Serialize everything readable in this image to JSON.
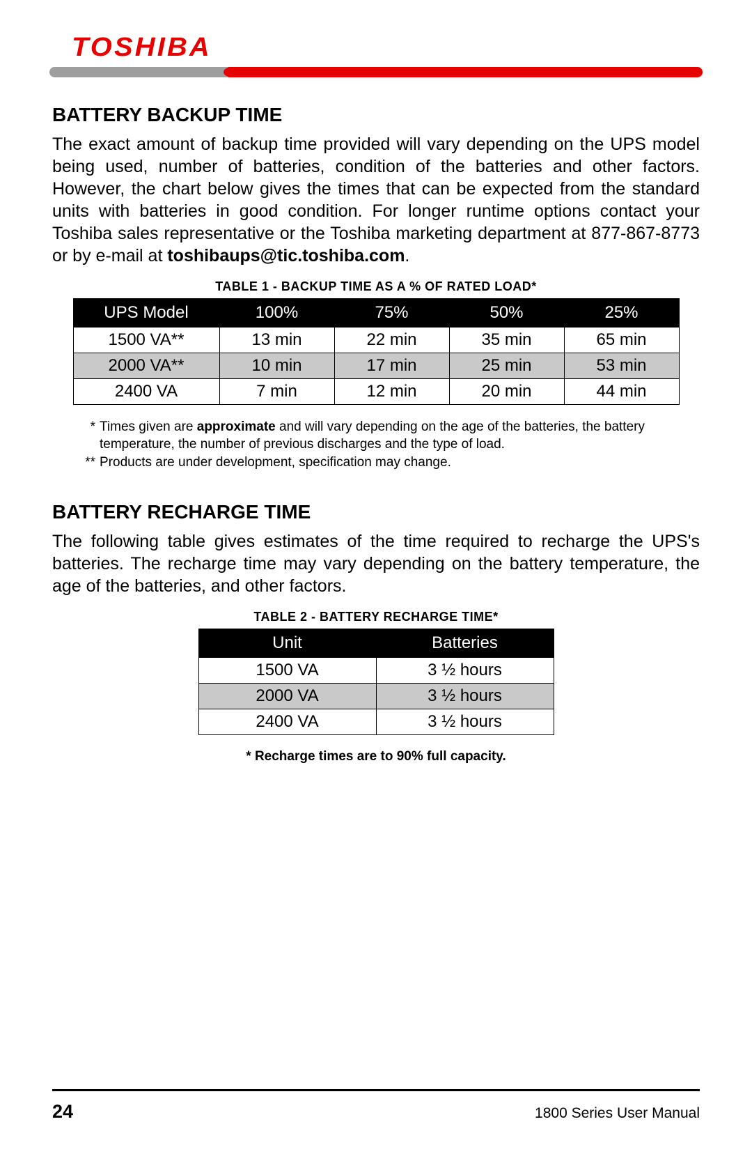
{
  "brand": "TOSHIBA",
  "colors": {
    "red": "#e60000",
    "gray": "#9e9e9e",
    "black": "#000000",
    "shade": "#c9c9c9"
  },
  "section1": {
    "heading": "BATTERY BACKUP TIME",
    "para_before": "The exact amount of backup time provided will vary depending on the UPS model being used, number of batteries, condition of the batteries and other factors.  However, the chart below gives the times that can be expected from the standard units with batteries in good condition.  For longer runtime options contact your Toshiba sales representative or the Toshiba marketing department at 877-867-8773  or by e-mail at ",
    "email": "toshibaups@tic.toshiba.com",
    "para_after": "."
  },
  "table1": {
    "title": "TABLE 1 - BACKUP TIME AS A % OF RATED LOAD*",
    "headers": [
      "UPS Model",
      "100%",
      "75%",
      "50%",
      "25%"
    ],
    "rows": [
      {
        "cells": [
          "1500 VA**",
          "13 min",
          "22 min",
          "35 min",
          "65 min"
        ],
        "shaded": false
      },
      {
        "cells": [
          "2000 VA**",
          "10 min",
          "17 min",
          "25 min",
          "53 min"
        ],
        "shaded": true
      },
      {
        "cells": [
          "2400 VA",
          "7 min",
          "12 min",
          "20 min",
          "44 min"
        ],
        "shaded": false
      }
    ],
    "note1_star": "*",
    "note1_a": " Times given are ",
    "note1_bold": "approximate",
    "note1_b": " and will vary depending on the age of the batteries, the battery temperature, the number of previous discharges and the type of load.",
    "note2_star": "**",
    "note2": " Products are under development, specification may change."
  },
  "section2": {
    "heading": "BATTERY RECHARGE TIME",
    "para": "The following table gives estimates of the time required to recharge the UPS's batteries.  The recharge time may vary depending on the battery temperature, the age of the batteries, and other factors."
  },
  "table2": {
    "title": "TABLE 2 - BATTERY RECHARGE TIME*",
    "headers": [
      "Unit",
      "Batteries"
    ],
    "rows": [
      {
        "cells": [
          "1500 VA",
          "3 ½ hours"
        ],
        "shaded": false
      },
      {
        "cells": [
          "2000 VA",
          "3 ½ hours"
        ],
        "shaded": true
      },
      {
        "cells": [
          "2400 VA",
          "3 ½ hours"
        ],
        "shaded": false
      }
    ],
    "note": "* Recharge times are to 90% full capacity."
  },
  "footer": {
    "page": "24",
    "manual": "1800 Series User Manual"
  }
}
